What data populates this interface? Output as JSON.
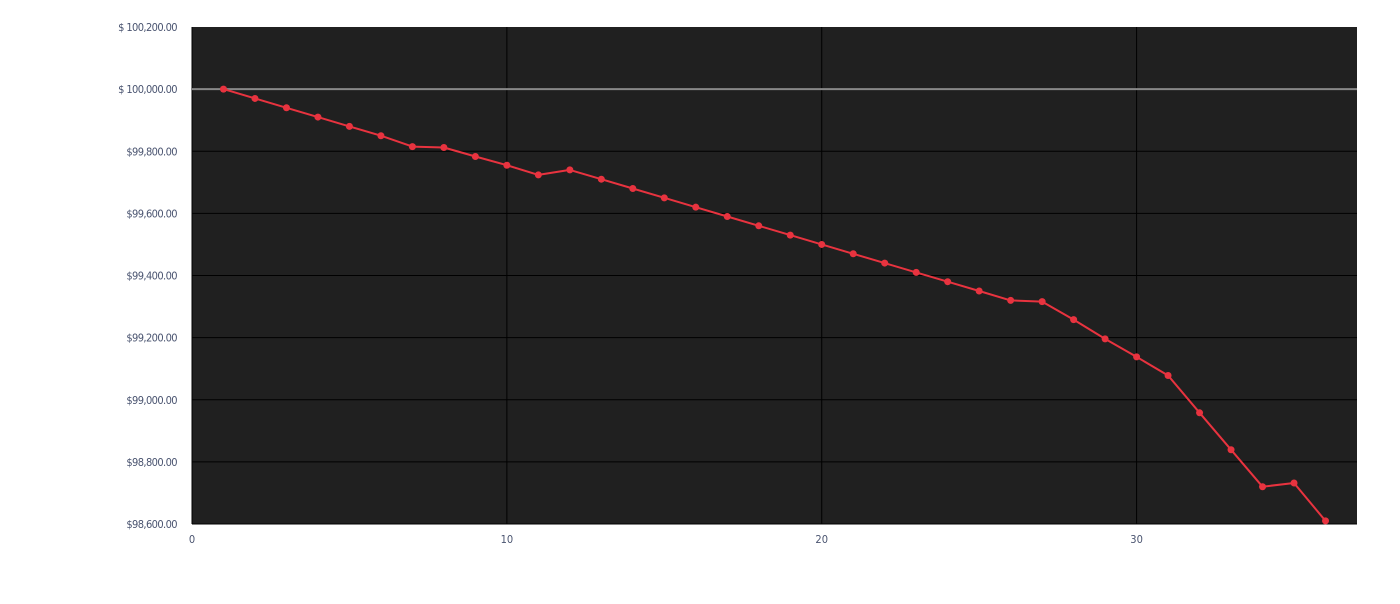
{
  "chart_data": {
    "type": "line",
    "title": "",
    "xlabel": "",
    "ylabel": "",
    "xlim": [
      0,
      37
    ],
    "ylim": [
      98600,
      100200
    ],
    "x_ticks": [
      {
        "value": 0,
        "label": "0"
      },
      {
        "value": 10,
        "label": "10"
      },
      {
        "value": 20,
        "label": "20"
      },
      {
        "value": 30,
        "label": "30"
      }
    ],
    "y_ticks": [
      {
        "value": 100200,
        "label": "$ 100,200.00"
      },
      {
        "value": 100000,
        "label": "$ 100,000.00"
      },
      {
        "value": 99800,
        "label": "$99,800.00"
      },
      {
        "value": 99600,
        "label": "$99,600.00"
      },
      {
        "value": 99400,
        "label": "$99,400.00"
      },
      {
        "value": 99200,
        "label": "$99,200.00"
      },
      {
        "value": 99000,
        "label": "$99,000.00"
      },
      {
        "value": 98800,
        "label": "$98,800.00"
      },
      {
        "value": 98600,
        "label": "$98,600.00"
      }
    ],
    "reference_line": {
      "value": 100000,
      "color": "#888888"
    },
    "grid": true,
    "background_color": "#202020",
    "gridline_color": "#000000",
    "series": [
      {
        "color": "#e8333f",
        "x": [
          1,
          2,
          3,
          4,
          5,
          6,
          7,
          8,
          9,
          10,
          11,
          12,
          13,
          14,
          15,
          16,
          17,
          18,
          19,
          20,
          21,
          22,
          23,
          24,
          25,
          26,
          27,
          28,
          29,
          30,
          31,
          32,
          33,
          34,
          35,
          36
        ],
        "y": [
          100000,
          99970,
          99940,
          99910,
          99880,
          99850,
          99815,
          99812,
          99783,
          99755,
          99724,
          99740,
          99710,
          99680,
          99650,
          99620,
          99590,
          99560,
          99530,
          99500,
          99470,
          99440,
          99410,
          99380,
          99350,
          99320,
          99316,
          99258,
          99196,
          99138,
          99078,
          98958,
          98839,
          98720,
          98732,
          98610
        ]
      }
    ]
  }
}
